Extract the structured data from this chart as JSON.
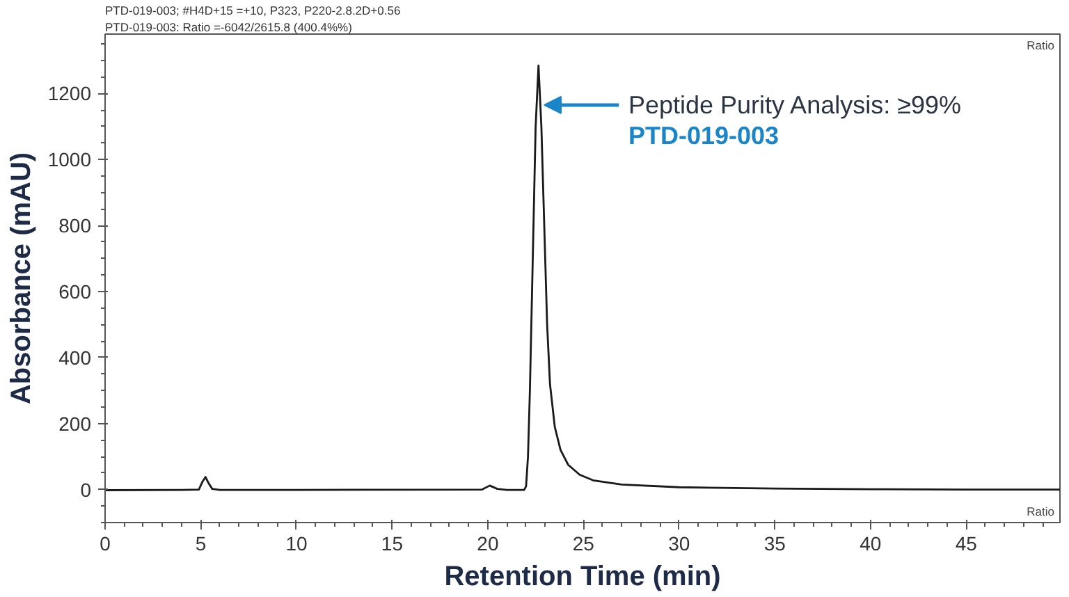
{
  "chart_data": {
    "type": "line",
    "xlabel": "Retention Time (min)",
    "ylabel": "Absorbance (mAU)",
    "xlim": [
      0,
      49.9
    ],
    "ylim": [
      -100,
      1380
    ],
    "xticks": [
      0,
      5,
      10,
      15,
      20,
      25,
      30,
      35,
      40,
      45
    ],
    "yticks": [
      0,
      200,
      400,
      600,
      800,
      1000,
      1200
    ],
    "grid": false,
    "marker": "none",
    "line_style": "solid",
    "series": [
      {
        "color": "#1a1a1a",
        "x": [
          0,
          4,
          4.9,
          5.1,
          5.25,
          5.4,
          5.6,
          6,
          10,
          19.7,
          20.1,
          20.5,
          21,
          21.9,
          22.0,
          22.1,
          22.2,
          22.35,
          22.5,
          22.65,
          22.8,
          22.95,
          23.1,
          23.25,
          23.5,
          23.8,
          24.2,
          24.8,
          25.5,
          27,
          30,
          35,
          40,
          45,
          49.9
        ],
        "values": [
          -2,
          -1,
          0,
          25,
          38,
          20,
          2,
          -1,
          -1,
          0,
          12,
          2,
          -1,
          -1,
          10,
          100,
          300,
          700,
          1100,
          1285,
          1100,
          800,
          500,
          320,
          190,
          120,
          75,
          45,
          28,
          15,
          7,
          3,
          1,
          0,
          0
        ]
      }
    ],
    "annotations": [
      "PTD-019-003; #H4D+15 =+10, P323, P220-2.8.2D+0.56",
      "PTD-019-003: Ratio =-6042/2615.8 (400.4%%)",
      "Ratio",
      "Ratio",
      {
        "text": "Peptide Purity Analysis: ≥99%\nPTD-019-003",
        "x": 22.65,
        "y": 1165
      }
    ]
  }
}
